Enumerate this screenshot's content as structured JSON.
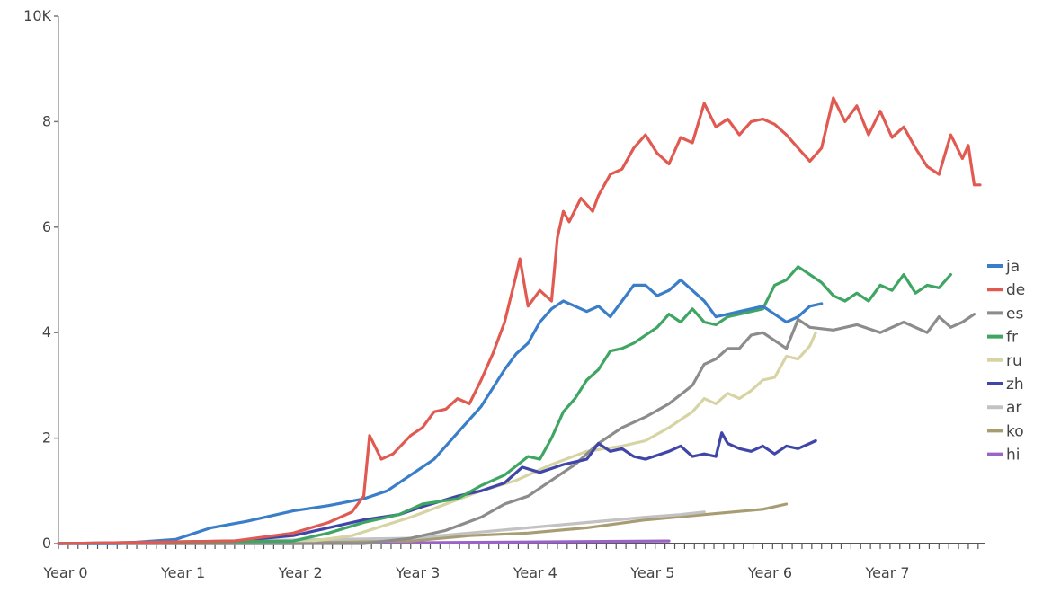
{
  "chart_data": {
    "type": "line",
    "title": "",
    "xlabel": "",
    "ylabel": "",
    "xlim": [
      0,
      7.85
    ],
    "ylim": [
      0,
      10
    ],
    "x_ticks": [
      {
        "value": 0,
        "label": "Year 0"
      },
      {
        "value": 1,
        "label": "Year 1"
      },
      {
        "value": 2,
        "label": "Year 2"
      },
      {
        "value": 3,
        "label": "Year 3"
      },
      {
        "value": 4,
        "label": "Year 4"
      },
      {
        "value": 5,
        "label": "Year 5"
      },
      {
        "value": 6,
        "label": "Year 6"
      },
      {
        "value": 7,
        "label": "Year 7"
      }
    ],
    "y_ticks": [
      {
        "value": 0,
        "label": "0"
      },
      {
        "value": 2,
        "label": "2"
      },
      {
        "value": 4,
        "label": "4"
      },
      {
        "value": 6,
        "label": "6"
      },
      {
        "value": 8,
        "label": "8"
      },
      {
        "value": 10,
        "label": "10K"
      }
    ],
    "legend_position": "right",
    "grid": false,
    "series": [
      {
        "name": "ja",
        "color": "#3a7dc9",
        "points": [
          [
            0,
            0
          ],
          [
            0.5,
            0
          ],
          [
            1,
            0.08
          ],
          [
            1.3,
            0.3
          ],
          [
            1.6,
            0.42
          ],
          [
            2,
            0.62
          ],
          [
            2.3,
            0.72
          ],
          [
            2.6,
            0.85
          ],
          [
            2.8,
            1.0
          ],
          [
            3.0,
            1.3
          ],
          [
            3.2,
            1.6
          ],
          [
            3.4,
            2.1
          ],
          [
            3.6,
            2.6
          ],
          [
            3.8,
            3.3
          ],
          [
            3.9,
            3.6
          ],
          [
            4.0,
            3.8
          ],
          [
            4.1,
            4.2
          ],
          [
            4.2,
            4.45
          ],
          [
            4.3,
            4.6
          ],
          [
            4.4,
            4.5
          ],
          [
            4.5,
            4.4
          ],
          [
            4.6,
            4.5
          ],
          [
            4.7,
            4.3
          ],
          [
            4.8,
            4.6
          ],
          [
            4.9,
            4.9
          ],
          [
            5.0,
            4.9
          ],
          [
            5.1,
            4.7
          ],
          [
            5.2,
            4.8
          ],
          [
            5.3,
            5.0
          ],
          [
            5.4,
            4.8
          ],
          [
            5.5,
            4.6
          ],
          [
            5.6,
            4.3
          ],
          [
            5.7,
            4.35
          ],
          [
            5.8,
            4.4
          ],
          [
            5.9,
            4.45
          ],
          [
            6.0,
            4.5
          ],
          [
            6.1,
            4.35
          ],
          [
            6.2,
            4.2
          ],
          [
            6.3,
            4.3
          ],
          [
            6.4,
            4.5
          ],
          [
            6.5,
            4.55
          ]
        ]
      },
      {
        "name": "de",
        "color": "#e05a52",
        "points": [
          [
            0,
            0
          ],
          [
            1.5,
            0.05
          ],
          [
            2,
            0.2
          ],
          [
            2.3,
            0.4
          ],
          [
            2.5,
            0.6
          ],
          [
            2.6,
            0.9
          ],
          [
            2.65,
            2.05
          ],
          [
            2.75,
            1.6
          ],
          [
            2.85,
            1.7
          ],
          [
            3.0,
            2.05
          ],
          [
            3.1,
            2.2
          ],
          [
            3.2,
            2.5
          ],
          [
            3.3,
            2.55
          ],
          [
            3.4,
            2.75
          ],
          [
            3.5,
            2.65
          ],
          [
            3.6,
            3.1
          ],
          [
            3.7,
            3.6
          ],
          [
            3.8,
            4.2
          ],
          [
            3.9,
            5.1
          ],
          [
            3.93,
            5.4
          ],
          [
            4.0,
            4.5
          ],
          [
            4.1,
            4.8
          ],
          [
            4.2,
            4.6
          ],
          [
            4.25,
            5.8
          ],
          [
            4.3,
            6.3
          ],
          [
            4.35,
            6.1
          ],
          [
            4.45,
            6.55
          ],
          [
            4.55,
            6.3
          ],
          [
            4.6,
            6.6
          ],
          [
            4.7,
            7.0
          ],
          [
            4.8,
            7.1
          ],
          [
            4.9,
            7.5
          ],
          [
            5.0,
            7.75
          ],
          [
            5.1,
            7.4
          ],
          [
            5.2,
            7.2
          ],
          [
            5.3,
            7.7
          ],
          [
            5.4,
            7.6
          ],
          [
            5.5,
            8.35
          ],
          [
            5.6,
            7.9
          ],
          [
            5.7,
            8.05
          ],
          [
            5.8,
            7.75
          ],
          [
            5.9,
            8.0
          ],
          [
            6.0,
            8.05
          ],
          [
            6.1,
            7.95
          ],
          [
            6.2,
            7.75
          ],
          [
            6.3,
            7.5
          ],
          [
            6.4,
            7.25
          ],
          [
            6.5,
            7.5
          ],
          [
            6.6,
            8.45
          ],
          [
            6.7,
            8.0
          ],
          [
            6.8,
            8.3
          ],
          [
            6.9,
            7.75
          ],
          [
            7.0,
            8.2
          ],
          [
            7.1,
            7.7
          ],
          [
            7.2,
            7.9
          ],
          [
            7.3,
            7.5
          ],
          [
            7.4,
            7.15
          ],
          [
            7.5,
            7.0
          ],
          [
            7.6,
            7.75
          ],
          [
            7.7,
            7.3
          ],
          [
            7.75,
            7.55
          ],
          [
            7.8,
            6.8
          ],
          [
            7.85,
            6.8
          ]
        ]
      },
      {
        "name": "es",
        "color": "#8c8c8c",
        "points": [
          [
            0,
            0
          ],
          [
            2.6,
            0
          ],
          [
            3.0,
            0.1
          ],
          [
            3.3,
            0.25
          ],
          [
            3.6,
            0.5
          ],
          [
            3.8,
            0.75
          ],
          [
            4.0,
            0.9
          ],
          [
            4.2,
            1.2
          ],
          [
            4.4,
            1.5
          ],
          [
            4.6,
            1.9
          ],
          [
            4.8,
            2.2
          ],
          [
            5.0,
            2.4
          ],
          [
            5.2,
            2.65
          ],
          [
            5.4,
            3.0
          ],
          [
            5.5,
            3.4
          ],
          [
            5.6,
            3.5
          ],
          [
            5.7,
            3.7
          ],
          [
            5.8,
            3.7
          ],
          [
            5.9,
            3.95
          ],
          [
            6.0,
            4.0
          ],
          [
            6.1,
            3.85
          ],
          [
            6.2,
            3.7
          ],
          [
            6.3,
            4.25
          ],
          [
            6.4,
            4.1
          ],
          [
            6.6,
            4.05
          ],
          [
            6.8,
            4.15
          ],
          [
            7.0,
            4.0
          ],
          [
            7.2,
            4.2
          ],
          [
            7.4,
            4.0
          ],
          [
            7.5,
            4.3
          ],
          [
            7.6,
            4.1
          ],
          [
            7.7,
            4.2
          ],
          [
            7.8,
            4.35
          ]
        ]
      },
      {
        "name": "fr",
        "color": "#3fa563",
        "points": [
          [
            0,
            0
          ],
          [
            2.0,
            0.05
          ],
          [
            2.3,
            0.2
          ],
          [
            2.6,
            0.4
          ],
          [
            2.9,
            0.55
          ],
          [
            3.1,
            0.75
          ],
          [
            3.4,
            0.85
          ],
          [
            3.6,
            1.1
          ],
          [
            3.8,
            1.3
          ],
          [
            4.0,
            1.65
          ],
          [
            4.1,
            1.6
          ],
          [
            4.2,
            2.0
          ],
          [
            4.3,
            2.5
          ],
          [
            4.4,
            2.75
          ],
          [
            4.5,
            3.1
          ],
          [
            4.6,
            3.3
          ],
          [
            4.7,
            3.65
          ],
          [
            4.8,
            3.7
          ],
          [
            4.9,
            3.8
          ],
          [
            5.0,
            3.95
          ],
          [
            5.1,
            4.1
          ],
          [
            5.2,
            4.35
          ],
          [
            5.3,
            4.2
          ],
          [
            5.4,
            4.45
          ],
          [
            5.5,
            4.2
          ],
          [
            5.6,
            4.15
          ],
          [
            5.7,
            4.3
          ],
          [
            5.8,
            4.35
          ],
          [
            5.9,
            4.4
          ],
          [
            6.0,
            4.45
          ],
          [
            6.1,
            4.9
          ],
          [
            6.2,
            5.0
          ],
          [
            6.3,
            5.25
          ],
          [
            6.4,
            5.1
          ],
          [
            6.5,
            4.95
          ],
          [
            6.6,
            4.7
          ],
          [
            6.7,
            4.6
          ],
          [
            6.8,
            4.75
          ],
          [
            6.9,
            4.6
          ],
          [
            7.0,
            4.9
          ],
          [
            7.1,
            4.8
          ],
          [
            7.2,
            5.1
          ],
          [
            7.3,
            4.75
          ],
          [
            7.4,
            4.9
          ],
          [
            7.5,
            4.85
          ],
          [
            7.6,
            5.1
          ]
        ]
      },
      {
        "name": "ru",
        "color": "#d7d4a4",
        "points": [
          [
            0,
            0
          ],
          [
            2.0,
            0
          ],
          [
            2.5,
            0.15
          ],
          [
            3.0,
            0.5
          ],
          [
            3.3,
            0.75
          ],
          [
            3.6,
            1.0
          ],
          [
            3.9,
            1.2
          ],
          [
            4.2,
            1.5
          ],
          [
            4.5,
            1.75
          ],
          [
            4.8,
            1.85
          ],
          [
            5.0,
            1.95
          ],
          [
            5.2,
            2.2
          ],
          [
            5.4,
            2.5
          ],
          [
            5.5,
            2.75
          ],
          [
            5.6,
            2.65
          ],
          [
            5.7,
            2.85
          ],
          [
            5.8,
            2.75
          ],
          [
            5.9,
            2.9
          ],
          [
            6.0,
            3.1
          ],
          [
            6.1,
            3.15
          ],
          [
            6.2,
            3.55
          ],
          [
            6.3,
            3.5
          ],
          [
            6.4,
            3.75
          ],
          [
            6.45,
            4.0
          ]
        ]
      },
      {
        "name": "zh",
        "color": "#4045a8",
        "points": [
          [
            0,
            0
          ],
          [
            1.5,
            0.05
          ],
          [
            2.0,
            0.15
          ],
          [
            2.3,
            0.3
          ],
          [
            2.6,
            0.45
          ],
          [
            2.9,
            0.55
          ],
          [
            3.1,
            0.7
          ],
          [
            3.4,
            0.9
          ],
          [
            3.6,
            1.0
          ],
          [
            3.8,
            1.15
          ],
          [
            3.95,
            1.45
          ],
          [
            4.1,
            1.35
          ],
          [
            4.3,
            1.5
          ],
          [
            4.5,
            1.6
          ],
          [
            4.6,
            1.9
          ],
          [
            4.7,
            1.75
          ],
          [
            4.8,
            1.8
          ],
          [
            4.9,
            1.65
          ],
          [
            5.0,
            1.6
          ],
          [
            5.2,
            1.75
          ],
          [
            5.3,
            1.85
          ],
          [
            5.4,
            1.65
          ],
          [
            5.5,
            1.7
          ],
          [
            5.6,
            1.65
          ],
          [
            5.65,
            2.1
          ],
          [
            5.7,
            1.9
          ],
          [
            5.8,
            1.8
          ],
          [
            5.9,
            1.75
          ],
          [
            6.0,
            1.85
          ],
          [
            6.1,
            1.7
          ],
          [
            6.2,
            1.85
          ],
          [
            6.3,
            1.8
          ],
          [
            6.4,
            1.9
          ],
          [
            6.45,
            1.95
          ]
        ]
      },
      {
        "name": "ar",
        "color": "#c2c2c2",
        "points": [
          [
            0,
            0
          ],
          [
            3.0,
            0.1
          ],
          [
            3.5,
            0.2
          ],
          [
            4.0,
            0.3
          ],
          [
            4.5,
            0.4
          ],
          [
            5.0,
            0.5
          ],
          [
            5.3,
            0.55
          ],
          [
            5.5,
            0.6
          ]
        ]
      },
      {
        "name": "ko",
        "color": "#a89d72",
        "points": [
          [
            0,
            0
          ],
          [
            3.0,
            0.05
          ],
          [
            3.5,
            0.15
          ],
          [
            4.0,
            0.2
          ],
          [
            4.5,
            0.3
          ],
          [
            5.0,
            0.45
          ],
          [
            5.5,
            0.55
          ],
          [
            6.0,
            0.65
          ],
          [
            6.2,
            0.75
          ]
        ]
      },
      {
        "name": "hi",
        "color": "#9a63c7",
        "points": [
          [
            0,
            0
          ],
          [
            2.0,
            0.0
          ],
          [
            4.0,
            0.03
          ],
          [
            5.2,
            0.05
          ]
        ]
      }
    ]
  }
}
